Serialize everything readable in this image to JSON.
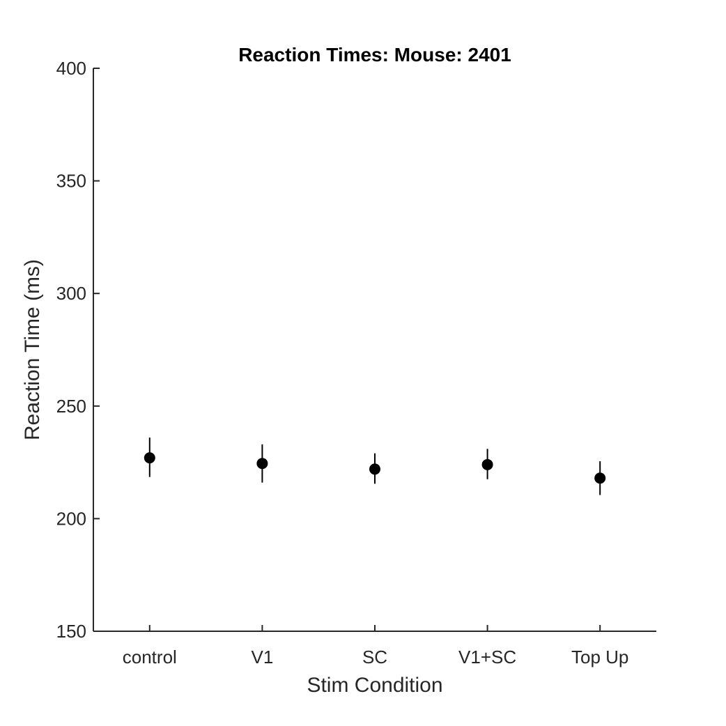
{
  "chart_data": {
    "type": "scatter",
    "title": "Reaction Times: Mouse: 2401",
    "xlabel": "Stim Condition",
    "ylabel": "Reaction Time (ms)",
    "ylim": [
      150,
      400
    ],
    "yticks": [
      150,
      200,
      250,
      300,
      350,
      400
    ],
    "categories": [
      "control",
      "V1",
      "SC",
      "V1+SC",
      "Top Up"
    ],
    "series": [
      {
        "name": "Reaction Time",
        "values": [
          227,
          224.5,
          222,
          224,
          218
        ],
        "error_low": [
          218.5,
          216,
          215.5,
          217.5,
          210.5
        ],
        "error_high": [
          236,
          233,
          229,
          231,
          225.5
        ]
      }
    ],
    "grid": false,
    "color": "#000000"
  }
}
